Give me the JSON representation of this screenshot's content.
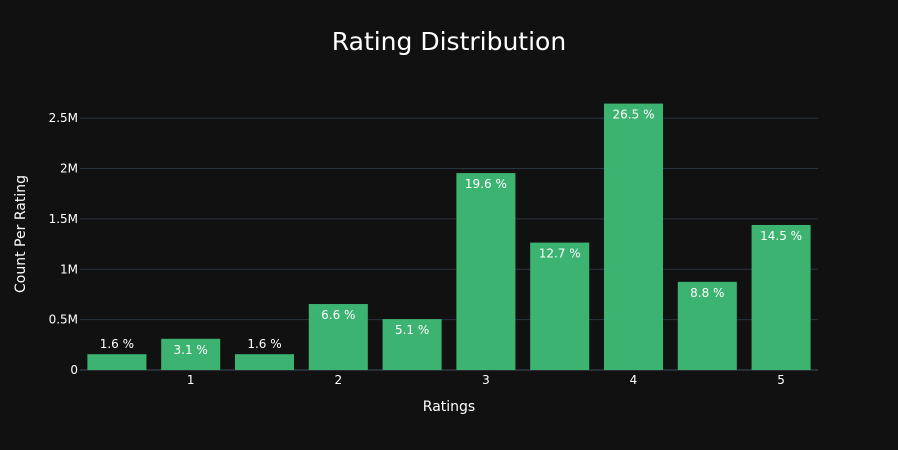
{
  "chart_data": {
    "type": "bar",
    "title": "Rating Distribution",
    "xlabel": "Ratings",
    "ylabel": "Count Per Rating",
    "x": [
      0.5,
      1,
      1.5,
      2,
      2.5,
      3,
      3.5,
      4,
      4.5,
      5
    ],
    "values": [
      157000,
      310000,
      157000,
      655000,
      505000,
      1955000,
      1265000,
      2645000,
      875000,
      1440000
    ],
    "labels": [
      "1.6 %",
      "3.1 %",
      "1.6 %",
      "6.6 %",
      "5.1 %",
      "19.6 %",
      "12.7 %",
      "26.5 %",
      "8.8 %",
      "14.5 %"
    ],
    "x_ticks": [
      1,
      2,
      3,
      4,
      5
    ],
    "x_tick_labels": [
      "1",
      "2",
      "3",
      "4",
      "5"
    ],
    "y_ticks": [
      0,
      500000,
      1000000,
      1500000,
      2000000,
      2500000
    ],
    "y_tick_labels": [
      "0",
      "0.5M",
      "1M",
      "1.5M",
      "2M",
      "2.5M"
    ],
    "xlim": [
      0.25,
      5.25
    ],
    "ylim": [
      0,
      2780000
    ],
    "grid": true,
    "bar_color": "#3cb371",
    "background": "#111111"
  }
}
